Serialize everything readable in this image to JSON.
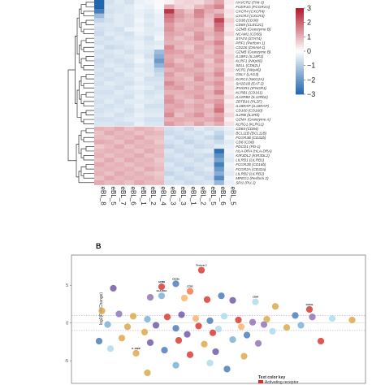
{
  "heatmap": {
    "panel_label": "",
    "samples": [
      "eBL_8",
      "eBL_5",
      "eBL_7",
      "eBL_6",
      "eBL_1",
      "eBL_2",
      "eBL_4",
      "eBL_3",
      "eBL_3",
      "eBL_1",
      "eBL_2",
      "eBL_5",
      "eBL_6",
      "eBL_5"
    ],
    "genes": [
      "HAVCR2 (TIM-3)",
      "FCER1G (FCGR1G)",
      "CXCR4 (CXCR4)",
      "CXCR3 (CXCR3)",
      "CD38 (CD38)",
      "CD69 (CLEC2C)",
      "GZMB (Granzyme B)",
      "NCAM1 (CD56)",
      "STAT4 (STAT4)",
      "PRF1 (Perforin 1)",
      "CD226 (DNAM-1)",
      "GZMB (Granzyme B)",
      "IL18R1 (IL18R1)",
      "KLRF1 (NKp80)",
      "SELL (CD62L)",
      "NCR1 (NKp46)",
      "GNLY (LAG3)",
      "KLRC1 (NKG2A)",
      "SH2D1B (EAT-2)",
      "IFNGR1 (IFNGR1)",
      "KLRB1 (CD161)",
      "IL12RB2 (IL12Rb2)",
      "ZBTB16 (PLZF)",
      "IL18RAP (IL18RAP)",
      "CD160 (CD160)",
      "IL2RB (IL2Rb)",
      "GZMA (Granzyme A)",
      "KLRG1 (KLRG1)",
      "CD84 (CD84)",
      "BCL11B (BCL11B)",
      "FCGR3B (CD32b)",
      "CD8 (CD8)",
      "PDCD1 (PD-1)",
      "HLA-DRA (HLA-DRA)",
      "KIR3DL2 (KIR3DL2)",
      "LILRB1 (LILRB1)",
      "FCGR2B (CD16b)",
      "FCGR2A (CD32a)",
      "LILRB2 (LILRB2)",
      "MPEG1 (Perforin 2)",
      "SPI1 (PU.1)"
    ],
    "colorbar_ticks": [
      "3",
      "2",
      "1",
      "0",
      "−1",
      "−2",
      "−3"
    ],
    "colors": {
      "high": "#b2182b",
      "mid": "#ffffff",
      "low": "#2166ac"
    },
    "values": [
      [
        -3,
        -0.6,
        -0.4,
        -0.6,
        -0.3,
        -0.2,
        0.1,
        0.2,
        0.5,
        0.6,
        0.5,
        0.8,
        1.2,
        0.3
      ],
      [
        -3,
        -0.5,
        -0.5,
        -0.4,
        -0.2,
        -0.3,
        -0.1,
        1.1,
        0.6,
        0.5,
        0.9,
        1.2,
        1.6,
        0.2
      ],
      [
        -2.5,
        -0.6,
        -0.5,
        -0.4,
        -0.3,
        -0.4,
        -0.2,
        2.6,
        1.2,
        0.8,
        1.6,
        1.1,
        0.9,
        0.4
      ],
      [
        -1.3,
        -0.5,
        -0.4,
        -0.5,
        -0.3,
        -0.5,
        -0.3,
        1.8,
        1.3,
        1.0,
        1.5,
        0.9,
        1.4,
        0.3
      ],
      [
        -0.8,
        -0.6,
        -0.4,
        -0.5,
        -0.2,
        -0.4,
        -0.3,
        1.6,
        1.1,
        0.9,
        1.1,
        0.8,
        2.4,
        0.6
      ],
      [
        -0.5,
        -0.5,
        -0.4,
        -0.5,
        -0.3,
        -0.5,
        -0.3,
        1.3,
        0.9,
        1.0,
        1.2,
        0.7,
        1.9,
        0.4
      ],
      [
        -0.6,
        -0.5,
        -0.6,
        -0.3,
        -0.2,
        -0.4,
        -0.4,
        1.4,
        1.0,
        1.1,
        1.0,
        0.9,
        1.7,
        0.3
      ],
      [
        -0.7,
        -0.4,
        -0.5,
        -0.6,
        -0.3,
        -0.4,
        -0.3,
        1.2,
        1.1,
        0.8,
        1.3,
        1.0,
        1.3,
        0.5
      ],
      [
        -0.5,
        -0.6,
        -0.4,
        -0.5,
        -0.4,
        -0.6,
        -0.2,
        1.1,
        0.8,
        1.0,
        1.4,
        0.8,
        1.2,
        0.2
      ],
      [
        -0.6,
        -0.5,
        -0.5,
        -0.4,
        -0.3,
        -0.5,
        -0.4,
        1.0,
        1.0,
        0.9,
        1.0,
        1.1,
        1.6,
        0.3
      ],
      [
        -0.4,
        -0.7,
        -0.6,
        -0.5,
        -0.3,
        -0.4,
        -0.3,
        1.5,
        0.9,
        0.7,
        1.2,
        0.9,
        1.2,
        0.4
      ],
      [
        -0.6,
        -0.5,
        -0.4,
        -0.6,
        -0.4,
        -0.5,
        -1.3,
        1.3,
        1.2,
        0.9,
        1.1,
        0.8,
        1.4,
        0.3
      ],
      [
        -0.5,
        -0.6,
        -0.5,
        -0.4,
        -0.3,
        -0.6,
        -1.6,
        1.1,
        1.0,
        1.2,
        0.9,
        1.0,
        1.1,
        0.5
      ],
      [
        -0.7,
        -0.5,
        -0.6,
        -0.5,
        -0.2,
        -0.4,
        -2.0,
        1.2,
        0.8,
        1.0,
        1.1,
        0.7,
        1.3,
        0.4
      ],
      [
        -0.6,
        -0.4,
        -0.5,
        -0.6,
        -0.4,
        -0.5,
        -1.5,
        1.4,
        1.1,
        0.9,
        1.3,
        0.9,
        1.0,
        0.3
      ],
      [
        -0.5,
        -0.6,
        -0.4,
        -0.5,
        -0.3,
        -0.5,
        -0.9,
        1.0,
        1.2,
        1.1,
        1.0,
        0.8,
        1.2,
        0.4
      ],
      [
        -0.6,
        -0.5,
        -0.6,
        -0.4,
        -0.4,
        -0.4,
        -0.7,
        1.3,
        0.9,
        1.0,
        1.2,
        1.0,
        1.5,
        0.2
      ],
      [
        -0.5,
        -0.6,
        -0.5,
        -0.5,
        -0.3,
        -0.6,
        -0.6,
        1.1,
        1.0,
        0.8,
        1.4,
        0.9,
        1.1,
        0.5
      ],
      [
        -0.6,
        -0.4,
        -0.5,
        -0.6,
        -0.4,
        -0.5,
        -0.5,
        1.5,
        1.1,
        1.0,
        1.0,
        1.1,
        1.4,
        0.3
      ],
      [
        -0.5,
        -0.5,
        -0.6,
        -0.4,
        -0.3,
        -0.4,
        -0.6,
        1.2,
        1.3,
        0.9,
        1.2,
        0.8,
        1.2,
        0.4
      ],
      [
        -0.6,
        -0.6,
        -0.4,
        -0.5,
        -0.4,
        -0.6,
        -0.5,
        1.0,
        1.0,
        1.1,
        1.1,
        1.0,
        1.6,
        0.3
      ],
      [
        -0.5,
        -0.5,
        -0.5,
        -0.6,
        -0.3,
        -0.5,
        -0.4,
        1.3,
        0.9,
        1.0,
        1.3,
        0.9,
        1.0,
        0.5
      ],
      [
        -0.6,
        -0.4,
        -0.6,
        -0.4,
        -0.4,
        -0.4,
        -0.5,
        1.4,
        1.1,
        0.8,
        1.0,
        1.1,
        1.3,
        0.2
      ],
      [
        -0.5,
        -0.6,
        -0.5,
        -0.5,
        -0.3,
        -0.6,
        -0.6,
        1.1,
        1.2,
        1.0,
        1.2,
        0.8,
        1.5,
        0.4
      ],
      [
        -0.6,
        -0.5,
        -0.4,
        -0.6,
        -0.4,
        -0.5,
        -0.5,
        1.2,
        1.0,
        0.9,
        1.1,
        1.0,
        1.8,
        0.3
      ],
      [
        -0.5,
        -0.4,
        -0.6,
        -0.5,
        -0.3,
        -0.4,
        -0.4,
        1.5,
        0.8,
        1.1,
        1.4,
        0.9,
        1.2,
        0.5
      ],
      [
        -0.6,
        -0.6,
        -0.5,
        -0.4,
        -0.4,
        -0.6,
        -0.6,
        1.0,
        1.1,
        1.0,
        1.0,
        1.1,
        1.4,
        0.2
      ],
      [
        -0.5,
        -0.5,
        -0.6,
        -0.6,
        -0.3,
        -0.5,
        -0.5,
        1.3,
        1.0,
        0.8,
        1.2,
        0.8,
        1.1,
        0.4
      ],
      [
        1.0,
        0.9,
        1.1,
        0.8,
        1.0,
        0.9,
        0.7,
        -0.6,
        -0.5,
        -0.7,
        -0.4,
        -0.6,
        -0.5,
        -0.3
      ],
      [
        0.8,
        1.1,
        0.9,
        1.0,
        0.8,
        1.0,
        0.9,
        -0.7,
        -0.6,
        -0.5,
        -0.6,
        -0.4,
        -0.8,
        -0.4
      ],
      [
        0.9,
        0.8,
        1.0,
        0.9,
        1.1,
        0.8,
        0.8,
        -0.5,
        -0.7,
        -0.6,
        -0.5,
        -0.7,
        -1.0,
        -0.2
      ],
      [
        1.1,
        1.0,
        0.8,
        1.1,
        0.9,
        1.0,
        0.7,
        -0.6,
        -0.5,
        -0.8,
        -0.6,
        -0.5,
        -0.7,
        -0.4
      ],
      [
        0.7,
        0.9,
        1.1,
        0.8,
        1.0,
        0.9,
        0.9,
        -0.8,
        -0.6,
        -0.5,
        -0.7,
        -0.6,
        -0.4,
        -0.3
      ],
      [
        0.9,
        1.0,
        0.9,
        1.0,
        0.8,
        1.1,
        0.8,
        -0.5,
        -0.7,
        -0.6,
        -0.5,
        -0.4,
        -2.8,
        -0.2
      ],
      [
        1.0,
        0.8,
        1.0,
        0.9,
        1.1,
        0.8,
        0.9,
        -0.6,
        -0.5,
        -0.7,
        -0.6,
        -0.7,
        -2.2,
        -0.3
      ],
      [
        0.8,
        1.1,
        0.8,
        1.1,
        0.9,
        1.0,
        0.7,
        -0.7,
        -0.6,
        -0.5,
        -0.7,
        -0.5,
        -1.8,
        -0.4
      ],
      [
        1.1,
        0.9,
        1.0,
        0.8,
        1.0,
        0.9,
        0.8,
        -0.5,
        -0.7,
        -0.6,
        -0.5,
        -0.6,
        -2.5,
        -0.2
      ],
      [
        0.9,
        1.0,
        0.9,
        1.0,
        0.8,
        1.1,
        0.9,
        -0.6,
        -0.5,
        -0.8,
        -0.6,
        -0.4,
        -2.0,
        -0.3
      ],
      [
        1.0,
        0.8,
        1.1,
        0.9,
        1.0,
        0.8,
        0.7,
        -0.8,
        -0.6,
        -0.5,
        -0.7,
        -0.6,
        -1.6,
        -0.4
      ],
      [
        0.8,
        1.1,
        0.9,
        1.0,
        0.9,
        1.0,
        0.8,
        -0.5,
        -0.7,
        -0.6,
        -0.5,
        -0.7,
        -2.3,
        -0.2
      ],
      [
        1.1,
        0.9,
        1.0,
        0.8,
        1.1,
        0.9,
        0.9,
        -0.6,
        -0.5,
        -0.7,
        -0.6,
        -0.5,
        -1.4,
        -0.3
      ]
    ]
  },
  "scatter": {
    "panel_label": "B",
    "ylabel": "log2(FoldChange)",
    "legend_title": "Text color key",
    "legend_item": "Activating receptor",
    "points": [
      {
        "label": "Perforin 2",
        "x": 0.44,
        "y": 7.0,
        "c": "#d73027"
      },
      {
        "label": "CD16b",
        "x": 0.35,
        "y": 5.2,
        "c": "#4575b4"
      },
      {
        "label": "GZMB",
        "x": 0.3,
        "y": 4.8,
        "c": "#d73027"
      },
      {
        "label": "",
        "x": 0.13,
        "y": 4.6,
        "c": "#6a51a3"
      },
      {
        "label": "CD32",
        "x": 0.4,
        "y": 4.2,
        "c": "#f46d43"
      },
      {
        "label": "HLA-DRA",
        "x": 0.3,
        "y": 3.6,
        "c": "#74add1"
      },
      {
        "label": "",
        "x": 0.26,
        "y": 3.4,
        "c": "#8c6bb1"
      },
      {
        "label": "",
        "x": 0.38,
        "y": 3.3,
        "c": "#fdae61"
      },
      {
        "label": "",
        "x": 0.46,
        "y": 3.1,
        "c": "#d73027"
      },
      {
        "label": "",
        "x": 0.51,
        "y": 3.6,
        "c": "#4575b4"
      },
      {
        "label": "",
        "x": 0.55,
        "y": 3.0,
        "c": "#6a51a3"
      },
      {
        "label": "CD84",
        "x": 0.63,
        "y": 2.8,
        "c": "#abd9e9"
      },
      {
        "label": "",
        "x": 0.7,
        "y": 2.2,
        "c": "#d9a441"
      },
      {
        "label": "CD16a",
        "x": 0.82,
        "y": 1.8,
        "c": "#d73027"
      },
      {
        "label": "",
        "x": 0.77,
        "y": 1.0,
        "c": "#4575b4"
      },
      {
        "label": "",
        "x": 0.83,
        "y": 0.8,
        "c": "#8c6bb1"
      },
      {
        "label": "",
        "x": 0.9,
        "y": 0.6,
        "c": "#abd9e9"
      },
      {
        "label": "",
        "x": 0.97,
        "y": 0.4,
        "c": "#d9a441"
      },
      {
        "label": "",
        "x": 0.09,
        "y": 1.6,
        "c": "#d9a441"
      },
      {
        "label": "",
        "x": 0.15,
        "y": 1.2,
        "c": "#8c6bb1"
      },
      {
        "label": "",
        "x": 0.2,
        "y": 0.9,
        "c": "#d9a441"
      },
      {
        "label": "",
        "x": 0.25,
        "y": 0.5,
        "c": "#74add1"
      },
      {
        "label": "",
        "x": 0.32,
        "y": 0.8,
        "c": "#d73027"
      },
      {
        "label": "",
        "x": 0.37,
        "y": 1.1,
        "c": "#6a51a3"
      },
      {
        "label": "",
        "x": 0.42,
        "y": 0.6,
        "c": "#fdae61"
      },
      {
        "label": "",
        "x": 0.47,
        "y": 0.3,
        "c": "#4575b4"
      },
      {
        "label": "",
        "x": 0.52,
        "y": 0.9,
        "c": "#abd9e9"
      },
      {
        "label": "",
        "x": 0.57,
        "y": 0.4,
        "c": "#d73027"
      },
      {
        "label": "",
        "x": 0.62,
        "y": 0.1,
        "c": "#8c6bb1"
      },
      {
        "label": "",
        "x": 0.67,
        "y": 0.5,
        "c": "#d9a441"
      },
      {
        "label": "",
        "x": 0.11,
        "y": -0.2,
        "c": "#74add1"
      },
      {
        "label": "",
        "x": 0.18,
        "y": -0.5,
        "c": "#d9a441"
      },
      {
        "label": "",
        "x": 0.28,
        "y": -0.3,
        "c": "#6a51a3"
      },
      {
        "label": "",
        "x": 0.35,
        "y": -0.7,
        "c": "#4575b4"
      },
      {
        "label": "",
        "x": 0.43,
        "y": -0.4,
        "c": "#d73027"
      },
      {
        "label": "",
        "x": 0.5,
        "y": -0.8,
        "c": "#abd9e9"
      },
      {
        "label": "",
        "x": 0.58,
        "y": -0.5,
        "c": "#fdae61"
      },
      {
        "label": "",
        "x": 0.66,
        "y": -0.2,
        "c": "#8c6bb1"
      },
      {
        "label": "",
        "x": 0.74,
        "y": -0.6,
        "c": "#d9a441"
      },
      {
        "label": "",
        "x": 0.79,
        "y": -0.3,
        "c": "#74add1"
      },
      {
        "label": "",
        "x": 0.24,
        "y": -1.2,
        "c": "#d9a441"
      },
      {
        "label": "",
        "x": 0.39,
        "y": -1.5,
        "c": "#6a51a3"
      },
      {
        "label": "",
        "x": 0.48,
        "y": -1.3,
        "c": "#d73027"
      },
      {
        "label": "",
        "x": 0.6,
        "y": -1.6,
        "c": "#4575b4"
      },
      {
        "label": "",
        "x": 0.69,
        "y": -1.1,
        "c": "#abd9e9"
      },
      {
        "label": "",
        "x": 0.08,
        "y": -2.4,
        "c": "#4575b4"
      },
      {
        "label": "",
        "x": 0.16,
        "y": -2.0,
        "c": "#d9a441"
      },
      {
        "label": "",
        "x": 0.26,
        "y": -2.6,
        "c": "#6a51a3"
      },
      {
        "label": "",
        "x": 0.36,
        "y": -2.3,
        "c": "#d73027"
      },
      {
        "label": "",
        "x": 0.45,
        "y": -2.8,
        "c": "#d9a441"
      },
      {
        "label": "",
        "x": 0.55,
        "y": -2.2,
        "c": "#74add1"
      },
      {
        "label": "",
        "x": 0.64,
        "y": -2.7,
        "c": "#8c6bb1"
      },
      {
        "label": "",
        "x": 0.86,
        "y": -2.4,
        "c": "#d73027"
      },
      {
        "label": "",
        "x": 0.12,
        "y": -3.4,
        "c": "#abd9e9"
      },
      {
        "label": "IL-18BP",
        "x": 0.21,
        "y": -4.0,
        "c": "#d9a441"
      },
      {
        "label": "",
        "x": 0.31,
        "y": -3.6,
        "c": "#4575b4"
      },
      {
        "label": "",
        "x": 0.4,
        "y": -4.2,
        "c": "#d73027"
      },
      {
        "label": "",
        "x": 0.49,
        "y": -3.8,
        "c": "#6a51a3"
      },
      {
        "label": "",
        "x": 0.59,
        "y": -4.4,
        "c": "#d9a441"
      },
      {
        "label": "",
        "x": 0.35,
        "y": -5.6,
        "c": "#74add1"
      },
      {
        "label": "",
        "x": 0.47,
        "y": -5.3,
        "c": "#abd9e9"
      },
      {
        "label": "",
        "x": 0.53,
        "y": -6.1,
        "c": "#4575b4"
      },
      {
        "label": "",
        "x": 0.25,
        "y": -6.6,
        "c": "#d9a441"
      }
    ],
    "yticks": [
      "5",
      "0",
      "-5"
    ],
    "ylim": [
      -8,
      9
    ]
  },
  "chart_data": [
    {
      "type": "heatmap",
      "title": "",
      "x": [
        "eBL_8",
        "eBL_5",
        "eBL_7",
        "eBL_6",
        "eBL_1",
        "eBL_2",
        "eBL_4",
        "eBL_3",
        "eBL_3",
        "eBL_1",
        "eBL_2",
        "eBL_5",
        "eBL_6",
        "eBL_5"
      ],
      "colorbar_range": [
        -3,
        3
      ]
    },
    {
      "type": "scatter",
      "title": "",
      "ylabel": "log2(FoldChange)",
      "ylim": [
        -8,
        9
      ],
      "threshold_lines": [
        1,
        -1
      ]
    }
  ]
}
